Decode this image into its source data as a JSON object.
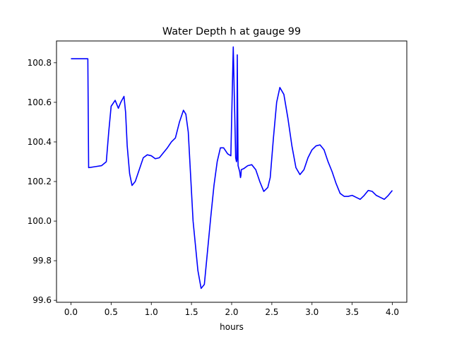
{
  "chart_data": {
    "type": "line",
    "title": "Water Depth h at gauge 99",
    "xlabel": "hours",
    "ylabel": "",
    "xlim": [
      -0.18,
      4.18
    ],
    "ylim": [
      99.59,
      100.91
    ],
    "grid": false,
    "x_ticks": [
      0.0,
      0.5,
      1.0,
      1.5,
      2.0,
      2.5,
      3.0,
      3.5,
      4.0
    ],
    "x_tick_labels": [
      "0.0",
      "0.5",
      "1.0",
      "1.5",
      "2.0",
      "2.5",
      "3.0",
      "3.5",
      "4.0"
    ],
    "y_ticks": [
      99.6,
      99.8,
      100.0,
      100.2,
      100.4,
      100.6,
      100.8
    ],
    "y_tick_labels": [
      "99.6",
      "99.8",
      "100.0",
      "100.2",
      "100.4",
      "100.6",
      "100.8"
    ],
    "series": [
      {
        "color": "#0000ff",
        "x": [
          0.0,
          0.2,
          0.21,
          0.22,
          0.3,
          0.38,
          0.44,
          0.47,
          0.5,
          0.55,
          0.59,
          0.62,
          0.66,
          0.68,
          0.7,
          0.73,
          0.76,
          0.8,
          0.85,
          0.9,
          0.95,
          1.0,
          1.05,
          1.1,
          1.15,
          1.2,
          1.25,
          1.3,
          1.35,
          1.4,
          1.43,
          1.46,
          1.48,
          1.52,
          1.58,
          1.62,
          1.66,
          1.7,
          1.74,
          1.78,
          1.82,
          1.86,
          1.9,
          1.95,
          1.99,
          2.02,
          2.05,
          2.06,
          2.065,
          2.07,
          2.08,
          2.1,
          2.11,
          2.115,
          2.12,
          2.15,
          2.2,
          2.25,
          2.3,
          2.35,
          2.4,
          2.45,
          2.48,
          2.52,
          2.56,
          2.6,
          2.65,
          2.7,
          2.75,
          2.8,
          2.85,
          2.9,
          2.95,
          3.0,
          3.05,
          3.1,
          3.15,
          3.2,
          3.25,
          3.3,
          3.35,
          3.4,
          3.45,
          3.5,
          3.55,
          3.6,
          3.65,
          3.7,
          3.75,
          3.8,
          3.85,
          3.9,
          3.95,
          4.0
        ],
        "y": [
          100.82,
          100.82,
          100.82,
          100.27,
          100.275,
          100.28,
          100.3,
          100.45,
          100.58,
          100.61,
          100.57,
          100.6,
          100.63,
          100.55,
          100.38,
          100.24,
          100.18,
          100.2,
          100.26,
          100.32,
          100.335,
          100.33,
          100.315,
          100.32,
          100.345,
          100.37,
          100.4,
          100.42,
          100.5,
          100.56,
          100.54,
          100.45,
          100.3,
          100.0,
          99.75,
          99.66,
          99.68,
          99.85,
          100.02,
          100.18,
          100.3,
          100.37,
          100.37,
          100.34,
          100.33,
          100.88,
          100.32,
          100.3,
          100.31,
          100.84,
          100.28,
          100.25,
          100.22,
          100.23,
          100.26,
          100.265,
          100.28,
          100.285,
          100.26,
          100.2,
          100.15,
          100.17,
          100.22,
          100.42,
          100.6,
          100.675,
          100.64,
          100.52,
          100.38,
          100.27,
          100.235,
          100.26,
          100.32,
          100.36,
          100.38,
          100.385,
          100.36,
          100.3,
          100.25,
          100.19,
          100.14,
          100.125,
          100.125,
          100.13,
          100.12,
          100.11,
          100.13,
          100.155,
          100.15,
          100.13,
          100.12,
          100.11,
          100.13,
          100.155
        ]
      }
    ]
  }
}
